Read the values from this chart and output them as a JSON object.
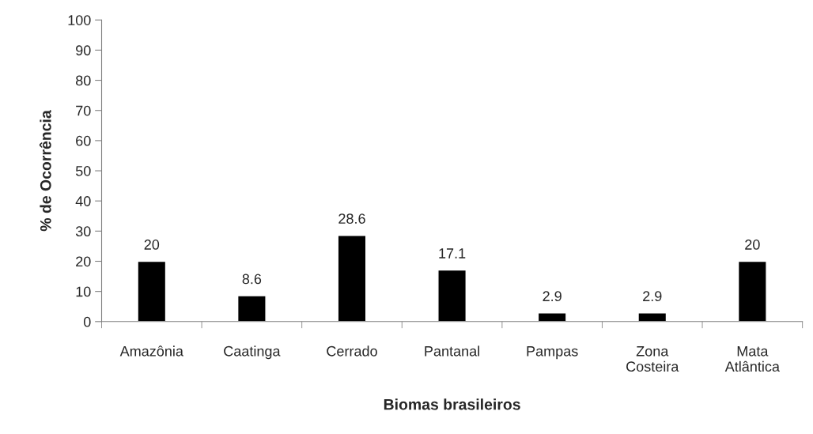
{
  "chart_data": {
    "type": "bar",
    "xlabel": "Biomas brasileiros",
    "ylabel": "% de Ocorrência",
    "categories": [
      "Amazônia",
      "Caatinga",
      "Cerrado",
      "Pantanal",
      "Pampas",
      "Zona\nCosteira",
      "Mata\nAtlântica"
    ],
    "values": [
      20,
      8.6,
      28.6,
      17.1,
      2.9,
      2.9,
      20
    ],
    "color": "#000000",
    "ylim": [
      0,
      100
    ],
    "yticks": [
      0,
      10,
      20,
      30,
      40,
      50,
      60,
      70,
      80,
      90,
      100
    ],
    "data_labels": true,
    "grid": false,
    "legend": false
  }
}
